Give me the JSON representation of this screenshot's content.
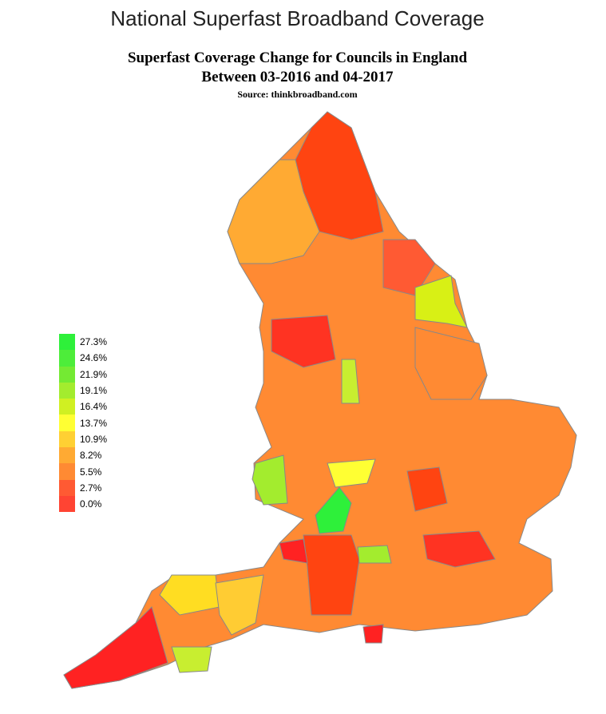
{
  "header": {
    "title": "National Superfast Broadband Coverage"
  },
  "map": {
    "subtitle": [
      "Superfast Coverage Change for Councils in England",
      "Between 03-2016 and 04-2017"
    ],
    "source": "Source: thinkbroadband.com",
    "legend": [
      {
        "label": "27.3%",
        "color": "#2ef03a"
      },
      {
        "label": "24.6%",
        "color": "#4ded3a"
      },
      {
        "label": "21.9%",
        "color": "#74ea33"
      },
      {
        "label": "19.1%",
        "color": "#a3ec2e"
      },
      {
        "label": "16.4%",
        "color": "#d0f022"
      },
      {
        "label": "13.7%",
        "color": "#ffff33"
      },
      {
        "label": "10.9%",
        "color": "#ffd033"
      },
      {
        "label": "8.2%",
        "color": "#ffaa33"
      },
      {
        "label": "5.5%",
        "color": "#ff8a33"
      },
      {
        "label": "2.7%",
        "color": "#ff5a33"
      },
      {
        "label": "0.0%",
        "color": "#ff4433"
      }
    ]
  }
}
